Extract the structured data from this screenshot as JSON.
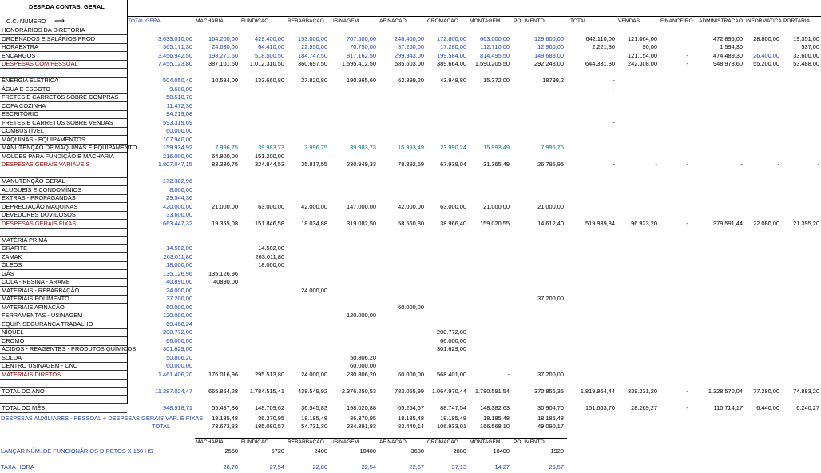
{
  "title": "DESP.DA CONTAB. GERAL",
  "header": {
    "label": "C.C. NÚMERO",
    "columns": [
      "TOTAL GERAL",
      "MACHARIA",
      "FUNDICAO",
      "REBARBAÇÃO",
      "USINAGEM",
      "AFINACAO",
      "CROMACAO",
      "MONTAGEM",
      "POLIMENTO",
      "TOTAL",
      "VENDAS",
      "FINANCEIRO",
      "ADMINISTRACAO",
      "INFORMATICA",
      "PORTARIA"
    ]
  },
  "rows": [
    {
      "label": "HONORÁRIOS DA DIRETORIA",
      "values": []
    },
    {
      "label": "ORDENADOS E SALÁRIOS PROD",
      "values": [
        "3.633.010,00",
        "164.200,00",
        "429.400,00",
        "153.000,00",
        "707.500,00",
        "248.400,00",
        "172.800,00",
        "663.000,00",
        "129.600,00",
        "642.110,00",
        "121.064,00",
        "",
        "472.895,00",
        "28.800,00",
        "19.351,00"
      ]
    },
    {
      "label": "HORAEXTRA",
      "values": [
        "365.171,30",
        "24.630,00",
        "64.410,00",
        "22.950,00",
        "70.750,00",
        "37.260,00",
        "17.280,00",
        "112.710,00",
        "12.960,00",
        "2.221,30",
        "90,00",
        "",
        "1.594,30",
        "",
        "537,00"
      ]
    },
    {
      "label": "ENCARGOS",
      "values": [
        "3.456.942,50",
        "198.271,50",
        "518.500,50",
        "184.747,50",
        "817.162,50",
        "299.943,00",
        "199.584,00",
        "814.495,50",
        "149.688,00",
        "",
        "121.154,00",
        "-",
        "474.489,30",
        "26.400,00",
        "33.600,00"
      ]
    },
    {
      "label": "DESPESAS COM PESSOAL",
      "values": [
        "7.455.123,80",
        "387.101,50",
        "1.012.310,50",
        "360.697,50",
        "1.595.412,50",
        "585.603,00",
        "389.664,00",
        "1.590.205,50",
        "292.248,00",
        "644.331,30",
        "242.308,00",
        "-",
        "948.978,60",
        "55.200,00",
        "53.488,00"
      ]
    },
    {
      "label": "",
      "values": []
    },
    {
      "label": "ENERGIA ELÉTRICA",
      "values": [
        "504.050,40",
        "10.584,00",
        "133.660,80",
        "27.820,80",
        "190.965,60",
        "62.899,20",
        "43.948,80",
        "15.372,00",
        "18799,2",
        "-"
      ]
    },
    {
      "label": "ÁGUA E ESGOTO",
      "values": [
        "9.600,00",
        "",
        "",
        "",
        "",
        "",
        "",
        "",
        "",
        "-"
      ]
    },
    {
      "label": "FRETES E CARRETOS SOBRE COMPRAS",
      "values": [
        "50.510,70"
      ]
    },
    {
      "label": "COPA COZINHA",
      "values": [
        "11.472,36"
      ]
    },
    {
      "label": "ESCRITÓRIO",
      "values": [
        "94.219,08"
      ]
    },
    {
      "label": "FRETES E CARRETOS SOBRE VENDAS",
      "values": [
        "593.319,69",
        "",
        "",
        "",
        "",
        "",
        "",
        "",
        "",
        "-"
      ]
    },
    {
      "label": "COMBUSTÍVEL",
      "values": [
        "60.000,00"
      ]
    },
    {
      "label": "MÁQUINAS - EQUIPAMENTOS",
      "values": [
        "107.940,00"
      ]
    },
    {
      "label": "MANUTENÇÃO DE MAQUINAS E EQUIPAMENTO",
      "values": [
        "159.934,92",
        "7.996,75",
        "39.983,73",
        "7.996,75",
        "39.983,73",
        "15.993,49",
        "23.990,24",
        "15.993,49",
        "7.996,75"
      ]
    },
    {
      "label": "MOLDES PARA FUNDIÇÃO E MACHARIA",
      "values": [
        "216.000,00",
        "64.800,00",
        "151.200,00"
      ]
    },
    {
      "label": "DESPESAS GERAIS VARIÁVEIS",
      "values": [
        "1.807.047,15",
        "83.380,75",
        "324.844,53",
        "35.817,55",
        "230.949,33",
        "78.892,69",
        "67.939,04",
        "31.365,49",
        "26.795,95",
        "-",
        "-",
        "-",
        "-",
        "-",
        "-"
      ]
    },
    {
      "label": "",
      "values": []
    },
    {
      "label": "MANUTENÇÃO GERAL -",
      "values": [
        "172.302,96"
      ]
    },
    {
      "label": "ALUGUEIS E CONDOMÍNIOS",
      "values": [
        "8.000,00"
      ]
    },
    {
      "label": "EXTRAS - PROPAGANDAS",
      "values": [
        "29.544,36"
      ]
    },
    {
      "label": "DEPRECIAÇÃO MAQUINAS",
      "values": [
        "420.000,00",
        "21.000,00",
        "63.000,00",
        "42.000,00",
        "147.000,00",
        "42.000,00",
        "63.000,00",
        "21.000,00",
        "21.000,00"
      ]
    },
    {
      "label": "DEVEDORES DUVIDOSOS",
      "values": [
        "33.600,00"
      ]
    },
    {
      "label": "DESPESAS GERAIS FIXAS",
      "values": [
        "663.447,32",
        "19.355,08",
        "151.846,58",
        "18.034,88",
        "319.082,50",
        "58.560,30",
        "38.966,40",
        "159.020,55",
        "14.612,40",
        "519.989,84",
        "96.923,20",
        "-",
        "379.591,44",
        "22.080,00",
        "21.395,20"
      ]
    },
    {
      "label": "",
      "values": []
    },
    {
      "label": "MATÉRIA PRIMA",
      "values": []
    },
    {
      "label": "GRAFITE",
      "values": [
        "14.502,00",
        "",
        "14.502,00"
      ]
    },
    {
      "label": "ZAMAK",
      "values": [
        "263.011,80",
        "",
        "263.011,80"
      ]
    },
    {
      "label": "ÓLEOS",
      "values": [
        "18.000,00",
        "",
        "18.000,00"
      ]
    },
    {
      "label": "GÁS",
      "values": [
        "135.126,96",
        "135.126,96"
      ]
    },
    {
      "label": "COLA - RESINA - ARAME",
      "values": [
        "40.890,00",
        "40890,00"
      ]
    },
    {
      "label": "MATERIAIS - REBARBAÇÃO",
      "values": [
        "24.000,00",
        "",
        "",
        "24.000,00"
      ]
    },
    {
      "label": "MATERIAIS POLIMENTO",
      "values": [
        "37.200,00",
        "",
        "",
        "",
        "",
        "",
        "",
        "",
        "37.200,00"
      ]
    },
    {
      "label": "MATERIAIS AFINAÇÃO",
      "values": [
        "60.000,00",
        "",
        "",
        "",
        "",
        "60.000,00"
      ]
    },
    {
      "label": "FERRAMENTAS - USINAGEM",
      "values": [
        "120.000,00",
        "",
        "",
        "",
        "120.000,00"
      ]
    },
    {
      "label": "EQUIP. SEGURANÇA TRABALHO",
      "values": [
        "69.468,24"
      ]
    },
    {
      "label": "NÍQUEL",
      "values": [
        "200.772,00",
        "",
        "",
        "",
        "",
        "",
        "200.772,00"
      ]
    },
    {
      "label": "CROMO",
      "values": [
        "66.000,00",
        "",
        "",
        "",
        "",
        "",
        "66.000,00"
      ]
    },
    {
      "label": "ÁCIDOS - REAGENTES - PRODUTOS QUÍMICOS",
      "values": [
        "301.629,00",
        "",
        "",
        "",
        "",
        "",
        "301.629,00"
      ]
    },
    {
      "label": "SOLDA",
      "values": [
        "50.806,20",
        "",
        "",
        "",
        "50.806,20"
      ]
    },
    {
      "label": "CENTRO USINAGEM - CNC",
      "values": [
        "60.000,00",
        "",
        "",
        "",
        "60.000,00"
      ]
    },
    {
      "label": "MATERIAIS DIRETOS",
      "values": [
        "1.461.406,20",
        "176.016,96",
        "295.513,80",
        "24.000,00",
        "230.806,20",
        "60.000,00",
        "568.401,00",
        "-",
        "37.200,00"
      ]
    },
    {
      "label": "",
      "values": []
    },
    {
      "label": "TOTAL DO ANO",
      "values": [
        "11.387.024,47",
        "665.854,28",
        "1.784.515,41",
        "438.549,92",
        "2.376.250,53",
        "783.055,99",
        "1.064.970,44",
        "1.780.591,54",
        "370.856,35",
        "1.819.964,44",
        "339.231,20",
        "-",
        "1.328.570,04",
        "77.280,00",
        "74.883,20"
      ]
    },
    {
      "label": "",
      "values": []
    },
    {
      "label": "TOTAL DO MÊS",
      "values": [
        "948.918,71",
        "55.487,86",
        "148.709,62",
        "36.545,83",
        "198.020,88",
        "65.254,67",
        "88.747,54",
        "148.382,63",
        "30.904,70",
        "151.663,70",
        "28.269,27",
        "-",
        "110.714,17",
        "6.440,00",
        "6.240,27"
      ]
    }
  ],
  "aux": {
    "line1": "DESPESAS AUXILIARES - PESSOAL + DESPESAS GERAIS VAR. E FIXAS",
    "line2": "TOTAL",
    "values1": [
      "18.185,48",
      "36.370,95",
      "18.185,48",
      "36.370,95",
      "18.185,48",
      "18.185,48",
      "18.185,48",
      "18.185,48"
    ],
    "values2": [
      "73.673,33",
      "185.080,57",
      "54.731,30",
      "234.391,83",
      "83.440,14",
      "106.933,01",
      "166.568,10",
      "49.090,17"
    ]
  },
  "bottom": {
    "columns": [
      "MACHARIA",
      "FUNDICAO",
      "REBARBAÇÃO",
      "USINAGEM",
      "AFINACAO",
      "CROMACAO",
      "MONTAGEM",
      "POLIMENTO"
    ],
    "funcionarios_label": "LANÇAR NÚM. DE FUNCIONÁRIOS DIRETOS X 160 HS",
    "funcionarios": [
      "2560",
      "6720",
      "2400",
      "10400",
      "3680",
      "2880",
      "10400",
      "1920"
    ],
    "taxa_label": "TAXA HORA",
    "taxa": [
      "28,78",
      "27,54",
      "22,80",
      "22,54",
      "22,67",
      "37,13",
      "14,27",
      "25,57"
    ]
  }
}
